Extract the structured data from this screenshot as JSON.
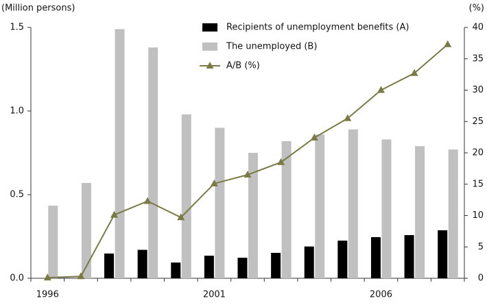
{
  "chart_data": {
    "type": "bar_line",
    "y_label": "(Million persons)",
    "y2_label": "(%)",
    "categories": [
      "1996",
      null,
      null,
      null,
      null,
      "2001",
      null,
      null,
      null,
      null,
      "2006",
      null,
      null
    ],
    "series": [
      {
        "name": "Recipients of unemployment benefits (A)",
        "color": "#000000",
        "kind": "bar",
        "values": [
          0,
          0,
          0.148,
          0.17,
          0.094,
          0.135,
          0.123,
          0.152,
          0.19,
          0.225,
          0.246,
          0.258,
          0.287
        ]
      },
      {
        "name": "The unemployed (B)",
        "color": "#c0c0c0",
        "kind": "bar",
        "values": [
          0.434,
          0.57,
          1.49,
          1.38,
          0.98,
          0.9,
          0.75,
          0.82,
          0.86,
          0.89,
          0.83,
          0.79,
          0.77
        ]
      },
      {
        "name": "A/B (%)",
        "color": "#7a7a45",
        "kind": "line",
        "axis": "y2",
        "values": [
          0.1,
          0.3,
          10.1,
          12.3,
          9.7,
          15.1,
          16.5,
          18.5,
          22.4,
          25.5,
          30,
          32.7,
          37.3
        ]
      }
    ],
    "ylim": [
      0,
      1.5
    ],
    "yticks": [
      {
        "value": 0,
        "label": "0.0"
      },
      0.5,
      {
        "value": 1,
        "label": "1.0"
      },
      1.5
    ],
    "y2lim": [
      0,
      40
    ],
    "y2ticks": [
      0,
      5,
      10,
      15,
      20,
      25,
      30,
      35,
      40
    ]
  }
}
